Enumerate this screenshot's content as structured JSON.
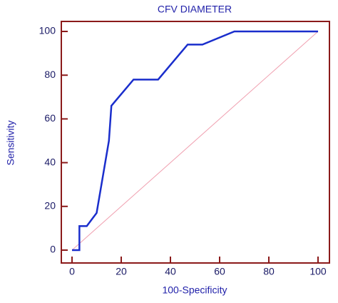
{
  "chart_data": {
    "type": "line",
    "title": "CFV DIAMETER",
    "x_label": "100-Specificity",
    "y_label": "Sensitivity",
    "series": [
      {
        "x": [
          0,
          3,
          3,
          6,
          8,
          10,
          15,
          16,
          25,
          35,
          47,
          53,
          66,
          100
        ],
        "values": [
          0,
          0,
          11,
          11,
          14,
          17,
          50,
          66,
          78,
          78,
          94,
          94,
          100,
          100
        ],
        "color": "#1a2ecc"
      },
      {
        "x": [
          0,
          100
        ],
        "values": [
          0,
          100
        ],
        "color": "#f0a0b0"
      }
    ],
    "xlim": [
      0,
      100
    ],
    "ylim": [
      0,
      100
    ],
    "xticks": [
      0,
      20,
      40,
      60,
      80,
      100
    ],
    "yticks": [
      0,
      20,
      40,
      60,
      80,
      100
    ],
    "frame_color": "#8b1a1a"
  }
}
